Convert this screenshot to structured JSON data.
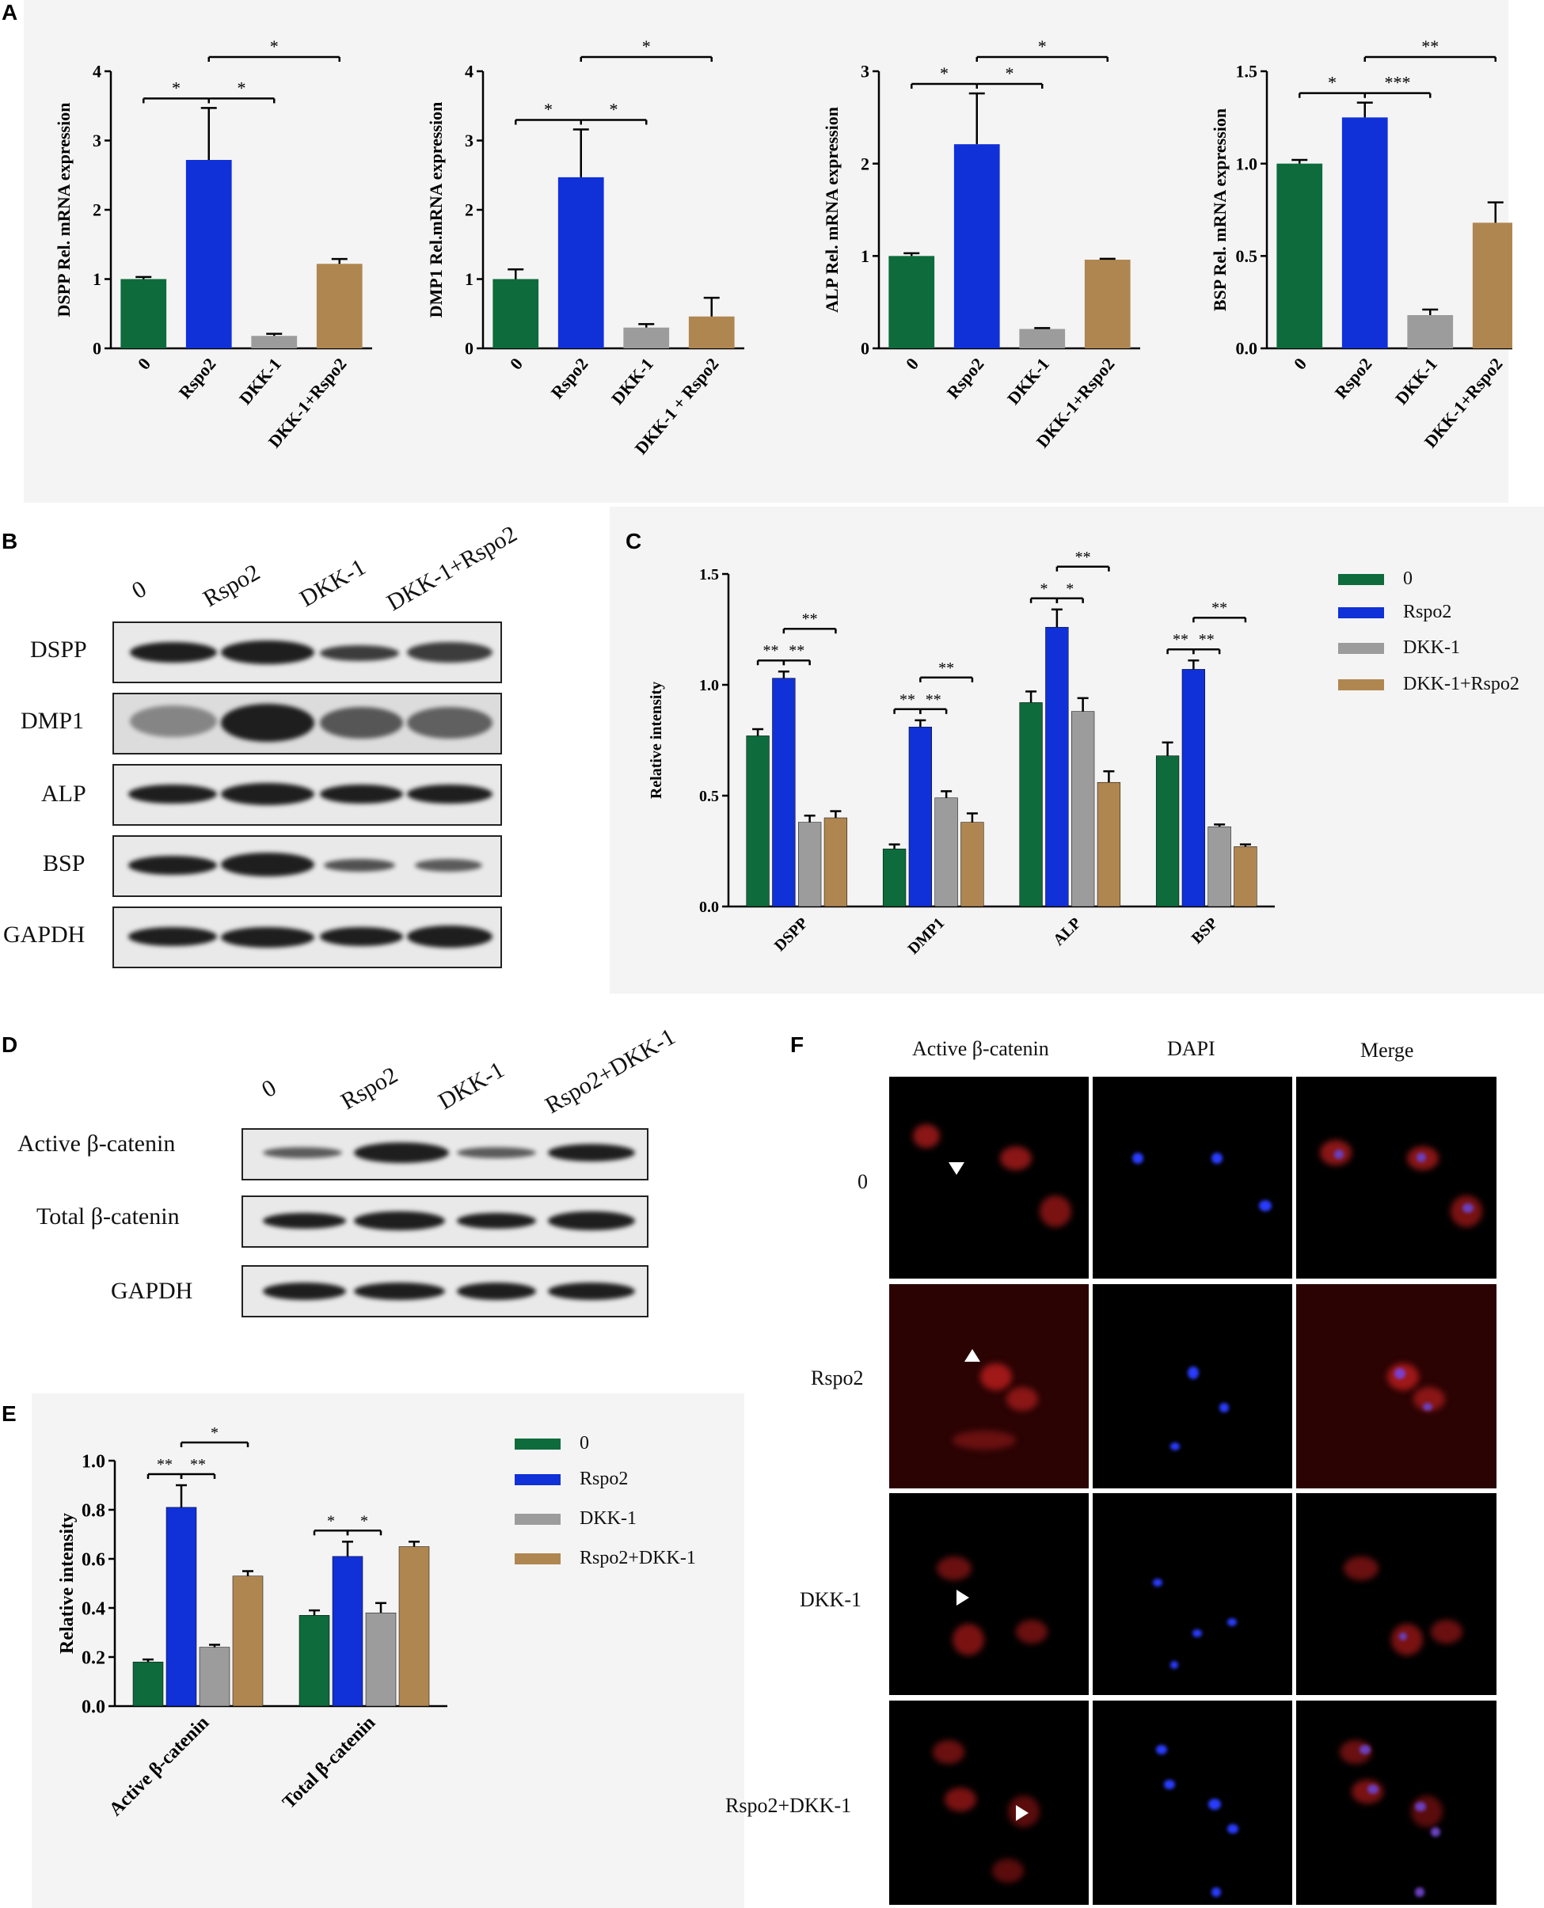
{
  "panels": {
    "A": "A",
    "B": "B",
    "C": "C",
    "D": "D",
    "E": "E",
    "F": "F"
  },
  "colors": {
    "g0": "#0d6b3c",
    "rspo2": "#1030d8",
    "dkk1": "#9c9c9c",
    "combo": "#b08650"
  },
  "chart_data": [
    {
      "id": "A1",
      "type": "bar",
      "categories": [
        "0",
        "Rspo2",
        "DKK-1",
        "DKK-1+Rspo2"
      ],
      "values": [
        1.0,
        2.72,
        0.18,
        1.22
      ],
      "errors": [
        0.03,
        0.75,
        0.03,
        0.07
      ],
      "ylabel": "DSPP Rel. mRNA expression",
      "ylim": [
        0,
        4
      ],
      "yticks": [
        "0",
        "1",
        "2",
        "3",
        "4"
      ],
      "sig": [
        {
          "from": 0,
          "to": 1,
          "label": "*"
        },
        {
          "from": 1,
          "to": 2,
          "label": "*"
        },
        {
          "from": 1,
          "to": 3,
          "label": "*"
        }
      ]
    },
    {
      "id": "A2",
      "type": "bar",
      "categories": [
        "0",
        "Rspo2",
        "DKK-1",
        "DKK-1 + Rspo2"
      ],
      "values": [
        1.0,
        2.47,
        0.3,
        0.46
      ],
      "errors": [
        0.14,
        0.69,
        0.05,
        0.27
      ],
      "ylabel": "DMP1 Rel.mRNA expression",
      "ylim": [
        0,
        4
      ],
      "yticks": [
        "0",
        "1",
        "2",
        "3",
        "4"
      ],
      "sig": [
        {
          "from": 0,
          "to": 1,
          "label": "*"
        },
        {
          "from": 1,
          "to": 2,
          "label": "*"
        },
        {
          "from": 1,
          "to": 3,
          "label": "*"
        }
      ]
    },
    {
      "id": "A3",
      "type": "bar",
      "categories": [
        "0",
        "Rspo2",
        "DKK-1",
        "DKK-1+Rspo2"
      ],
      "values": [
        1.0,
        2.21,
        0.21,
        0.96
      ],
      "errors": [
        0.03,
        0.55,
        0.01,
        0.01
      ],
      "ylabel": "ALP Rel. mRNA expression",
      "ylim": [
        0,
        3
      ],
      "yticks": [
        "0",
        "1",
        "2",
        "3"
      ],
      "sig": [
        {
          "from": 0,
          "to": 1,
          "label": "*"
        },
        {
          "from": 1,
          "to": 2,
          "label": "*"
        },
        {
          "from": 1,
          "to": 3,
          "label": "*"
        }
      ]
    },
    {
      "id": "A4",
      "type": "bar",
      "categories": [
        "0",
        "Rspo2",
        "DKK-1",
        "DKK-1+Rspo2"
      ],
      "values": [
        1.0,
        1.25,
        0.18,
        0.68
      ],
      "errors": [
        0.02,
        0.08,
        0.03,
        0.11
      ],
      "ylabel": "BSP Rel. mRNA expression",
      "ylim": [
        0,
        1.5
      ],
      "yticks": [
        "0.0",
        "0.5",
        "1.0",
        "1.5"
      ],
      "sig": [
        {
          "from": 0,
          "to": 1,
          "label": "*"
        },
        {
          "from": 1,
          "to": 2,
          "label": "***"
        },
        {
          "from": 1,
          "to": 3,
          "label": "**"
        }
      ]
    },
    {
      "id": "C",
      "type": "bar",
      "categories": [
        "DSPP",
        "DMP1",
        "ALP",
        "BSP"
      ],
      "series": [
        {
          "name": "0",
          "values": [
            0.77,
            0.26,
            0.92,
            0.68
          ],
          "errors": [
            0.03,
            0.02,
            0.05,
            0.06
          ]
        },
        {
          "name": "Rspo2",
          "values": [
            1.03,
            0.81,
            1.26,
            1.07
          ],
          "errors": [
            0.03,
            0.03,
            0.08,
            0.04
          ]
        },
        {
          "name": "DKK-1",
          "values": [
            0.38,
            0.49,
            0.88,
            0.36
          ],
          "errors": [
            0.03,
            0.03,
            0.06,
            0.01
          ]
        },
        {
          "name": "DKK-1+Rspo2",
          "values": [
            0.4,
            0.38,
            0.56,
            0.27
          ],
          "errors": [
            0.03,
            0.04,
            0.05,
            0.01
          ]
        }
      ],
      "ylabel": "Relative intensity",
      "ylim": [
        0,
        1.5
      ],
      "yticks": [
        "0.0",
        "0.5",
        "1.0",
        "1.5"
      ],
      "legend": "right",
      "sig": [
        {
          "group": 0,
          "pairs": [
            [
              "**",
              0,
              1,
              0
            ],
            [
              "**",
              1,
              2,
              0
            ],
            [
              "**",
              1,
              3,
              1
            ]
          ]
        },
        {
          "group": 1,
          "pairs": [
            [
              "**",
              0,
              1,
              0
            ],
            [
              "**",
              1,
              2,
              0
            ],
            [
              "**",
              1,
              3,
              1
            ]
          ]
        },
        {
          "group": 2,
          "pairs": [
            [
              "*",
              0,
              1,
              0
            ],
            [
              "*",
              1,
              2,
              0
            ],
            [
              "**",
              1,
              3,
              1
            ]
          ]
        },
        {
          "group": 3,
          "pairs": [
            [
              "**",
              0,
              1,
              0
            ],
            [
              "**",
              1,
              2,
              0
            ],
            [
              "**",
              1,
              3,
              1
            ]
          ]
        }
      ]
    },
    {
      "id": "E",
      "type": "bar",
      "categories": [
        "Active β-catenin",
        "Total β-catenin"
      ],
      "series": [
        {
          "name": "0",
          "values": [
            0.18,
            0.37
          ],
          "errors": [
            0.01,
            0.02
          ]
        },
        {
          "name": "Rspo2",
          "values": [
            0.81,
            0.61
          ],
          "errors": [
            0.09,
            0.06
          ]
        },
        {
          "name": "DKK-1",
          "values": [
            0.24,
            0.38
          ],
          "errors": [
            0.01,
            0.04
          ]
        },
        {
          "name": "Rspo2+DKK-1",
          "values": [
            0.53,
            0.65
          ],
          "errors": [
            0.02,
            0.02
          ]
        }
      ],
      "ylabel": "Relative intensity",
      "ylim": [
        0,
        1.0
      ],
      "yticks": [
        "0.0",
        "0.2",
        "0.4",
        "0.6",
        "0.8",
        "1.0"
      ],
      "legend": "right",
      "sig": [
        {
          "group": 0,
          "pairs": [
            [
              "**",
              0,
              1,
              0
            ],
            [
              "**",
              1,
              2,
              0
            ],
            [
              "*",
              1,
              3,
              1
            ]
          ]
        },
        {
          "group": 1,
          "pairs": [
            [
              "*",
              0,
              1,
              0
            ],
            [
              "*",
              1,
              2,
              0
            ]
          ]
        }
      ]
    }
  ],
  "blotB": {
    "lanes": [
      "0",
      "Rspo2",
      "DKK-1",
      "DKK-1+Rspo2"
    ],
    "rows": [
      "DSPP",
      "DMP1",
      "ALP",
      "BSP",
      "GAPDH"
    ]
  },
  "blotD": {
    "lanes": [
      "0",
      "Rspo2",
      "DKK-1",
      "Rspo2+DKK-1"
    ],
    "rows": [
      "Active β-catenin",
      "Total β-catenin",
      "GAPDH"
    ]
  },
  "legendC": [
    "0",
    "Rspo2",
    "DKK-1",
    "DKK-1+Rspo2"
  ],
  "legendE": [
    "0",
    "Rspo2",
    "DKK-1",
    "Rspo2+DKK-1"
  ],
  "panelF": {
    "columns": [
      "Active β-catenin",
      "DAPI",
      "Merge"
    ],
    "rows": [
      "0",
      "Rspo2",
      "DKK-1",
      "Rspo2+DKK-1"
    ]
  }
}
